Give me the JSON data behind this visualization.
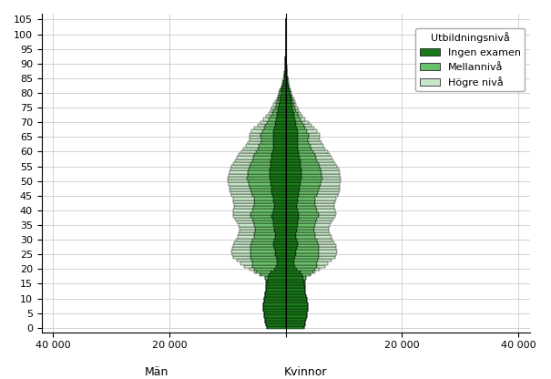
{
  "legend_title": "Utbildningsnivå",
  "legend_labels": [
    "Ingen examen",
    "Mellannivå",
    "Högre nivå"
  ],
  "colors": {
    "ingen_examen": "#1a7a1a",
    "mellanniva": "#6abf6a",
    "hogre_niva": "#c8e6c8"
  },
  "edgecolor": "#000000",
  "xlim": 42000,
  "xlabel_left": "Män",
  "xlabel_right": "Kvinnor",
  "yticks": [
    0,
    5,
    10,
    15,
    20,
    25,
    30,
    35,
    40,
    45,
    50,
    55,
    60,
    65,
    70,
    75,
    80,
    85,
    90,
    95,
    100,
    105
  ],
  "men_ingen": [
    3200,
    3400,
    3500,
    3600,
    3700,
    3800,
    3900,
    3900,
    3900,
    3800,
    3700,
    3600,
    3500,
    3400,
    3400,
    3300,
    3200,
    3100,
    2900,
    2600,
    2000,
    1700,
    1600,
    1600,
    1700,
    1800,
    1900,
    2000,
    2100,
    2100,
    2000,
    1900,
    1900,
    1950,
    2000,
    2100,
    2200,
    2300,
    2400,
    2300,
    2100,
    2000,
    2000,
    2100,
    2200,
    2300,
    2400,
    2500,
    2500,
    2600,
    2700,
    2800,
    2800,
    2800,
    2800,
    2700,
    2700,
    2600,
    2500,
    2400,
    2300,
    2200,
    2200,
    2200,
    2200,
    2200,
    2200,
    2100,
    2000,
    1900,
    1800,
    1700,
    1600,
    1500,
    1400,
    1300,
    1200,
    1100,
    1000,
    900,
    800,
    700,
    600,
    500,
    400,
    300,
    250,
    200,
    160,
    130,
    100,
    70,
    50,
    30,
    20,
    15,
    10,
    7,
    5,
    3,
    2,
    1,
    0,
    0,
    0,
    0,
    0
  ],
  "men_mell": [
    0,
    0,
    0,
    0,
    0,
    0,
    0,
    0,
    0,
    0,
    0,
    0,
    0,
    0,
    0,
    100,
    200,
    500,
    1500,
    2500,
    3500,
    4000,
    4200,
    4300,
    4300,
    4200,
    4100,
    4000,
    3900,
    3800,
    3700,
    3600,
    3500,
    3400,
    3300,
    3300,
    3400,
    3500,
    3600,
    3700,
    3700,
    3600,
    3500,
    3400,
    3300,
    3400,
    3500,
    3600,
    3700,
    3800,
    3900,
    3900,
    3800,
    3700,
    3600,
    3500,
    3300,
    3200,
    3100,
    3000,
    2800,
    2600,
    2400,
    2200,
    2000,
    2100,
    2200,
    2000,
    1800,
    1600,
    1400,
    1200,
    1000,
    800,
    700,
    600,
    500,
    400,
    300,
    250,
    200,
    150,
    100,
    80,
    60,
    40,
    25,
    15,
    10,
    7,
    5,
    3,
    2,
    1,
    0,
    0,
    0,
    0,
    0,
    0,
    0,
    0,
    0,
    0,
    0
  ],
  "men_hogre": [
    0,
    0,
    0,
    0,
    0,
    0,
    0,
    0,
    0,
    0,
    0,
    0,
    0,
    0,
    0,
    0,
    0,
    0,
    100,
    300,
    800,
    1500,
    2000,
    2500,
    3000,
    3200,
    3300,
    3200,
    3100,
    3000,
    2900,
    2800,
    2700,
    2600,
    2600,
    2700,
    2800,
    2900,
    3000,
    3100,
    3200,
    3300,
    3400,
    3500,
    3600,
    3700,
    3700,
    3600,
    3500,
    3400,
    3400,
    3300,
    3200,
    3200,
    3200,
    3100,
    3000,
    2900,
    2800,
    2700,
    2600,
    2500,
    2300,
    2200,
    2100,
    2000,
    1900,
    1800,
    1600,
    1400,
    1200,
    1000,
    800,
    700,
    600,
    500,
    400,
    350,
    300,
    250,
    200,
    150,
    100,
    80,
    60,
    40,
    25,
    15,
    10,
    7,
    5,
    3,
    2,
    1,
    0,
    0,
    0,
    0,
    0,
    0,
    0,
    0,
    0,
    0,
    0
  ],
  "women_ingen": [
    3100,
    3300,
    3400,
    3500,
    3600,
    3700,
    3800,
    3800,
    3800,
    3700,
    3600,
    3500,
    3400,
    3300,
    3300,
    3200,
    3100,
    3000,
    2800,
    2500,
    1900,
    1600,
    1500,
    1500,
    1600,
    1700,
    1800,
    1900,
    2000,
    2000,
    1900,
    1800,
    1800,
    1850,
    1900,
    2000,
    2100,
    2200,
    2300,
    2200,
    2000,
    1900,
    1900,
    2000,
    2100,
    2200,
    2300,
    2400,
    2400,
    2500,
    2600,
    2700,
    2700,
    2700,
    2700,
    2600,
    2600,
    2500,
    2400,
    2300,
    2200,
    2100,
    2100,
    2100,
    2100,
    2100,
    2100,
    2000,
    1900,
    1800,
    1700,
    1600,
    1500,
    1400,
    1300,
    1200,
    1100,
    1000,
    900,
    800,
    700,
    600,
    500,
    400,
    350,
    280,
    230,
    180,
    150,
    110,
    80,
    55,
    35,
    25,
    18,
    12,
    8,
    5,
    3,
    2,
    1,
    0,
    0,
    0,
    0,
    0
  ],
  "women_mell": [
    0,
    0,
    0,
    0,
    0,
    0,
    0,
    0,
    0,
    0,
    0,
    0,
    0,
    0,
    0,
    90,
    180,
    450,
    1400,
    2300,
    3200,
    3700,
    3900,
    4000,
    4000,
    3900,
    3800,
    3700,
    3600,
    3500,
    3400,
    3300,
    3200,
    3100,
    3000,
    3000,
    3100,
    3200,
    3300,
    3400,
    3400,
    3300,
    3200,
    3100,
    3000,
    3100,
    3200,
    3300,
    3400,
    3500,
    3600,
    3600,
    3500,
    3400,
    3300,
    3200,
    3000,
    2900,
    2800,
    2700,
    2500,
    2300,
    2100,
    1900,
    1700,
    1800,
    1900,
    1700,
    1500,
    1300,
    1100,
    900,
    700,
    600,
    500,
    400,
    350,
    300,
    250,
    200,
    150,
    110,
    80,
    60,
    40,
    25,
    15,
    10,
    7,
    5,
    3,
    2,
    1,
    0,
    0,
    0,
    0,
    0,
    0,
    0,
    0,
    0,
    0,
    0
  ],
  "women_hogre": [
    0,
    0,
    0,
    0,
    0,
    0,
    0,
    0,
    0,
    0,
    0,
    0,
    0,
    0,
    0,
    0,
    0,
    0,
    90,
    280,
    750,
    1400,
    1900,
    2400,
    2900,
    3100,
    3200,
    3100,
    3000,
    2900,
    2800,
    2700,
    2600,
    2500,
    2500,
    2600,
    2700,
    2800,
    2900,
    3000,
    3100,
    3200,
    3300,
    3400,
    3500,
    3600,
    3600,
    3500,
    3400,
    3300,
    3300,
    3200,
    3100,
    3100,
    3100,
    3000,
    2900,
    2800,
    2700,
    2600,
    2500,
    2400,
    2200,
    2100,
    2000,
    1900,
    1800,
    1700,
    1500,
    1300,
    1100,
    900,
    700,
    600,
    500,
    400,
    350,
    300,
    250,
    200,
    150,
    110,
    80,
    60,
    40,
    25,
    15,
    10,
    7,
    5,
    3,
    2,
    1,
    0,
    0,
    0,
    0,
    0,
    0,
    0,
    0,
    0,
    0,
    0
  ]
}
